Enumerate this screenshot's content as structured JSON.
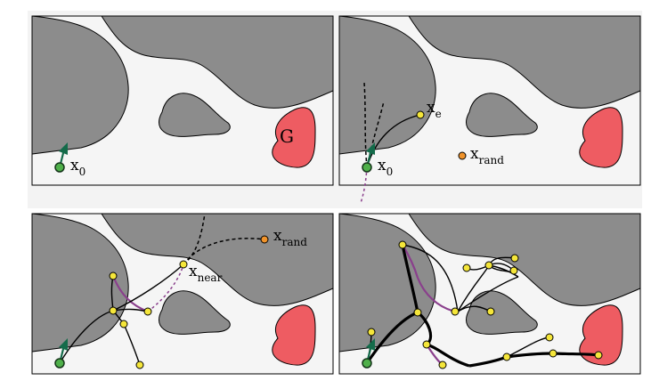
{
  "panels": [
    {
      "id": "panel-1"
    },
    {
      "id": "panel-2"
    },
    {
      "id": "panel-3"
    },
    {
      "id": "panel-4"
    }
  ],
  "labels": {
    "goal": "G",
    "start_main": "x",
    "start_sub": "0",
    "extend_main": "x",
    "extend_sub": "e",
    "rand_main": "x",
    "rand_sub": "rand",
    "near_main": "x",
    "near_sub": "near"
  },
  "colors": {
    "free_space": "#f5f5f5",
    "obstacle": "#8c8c8c",
    "goal": "#ee5c62",
    "tree_node": "#f5e63a",
    "start_node": "#4fb04a",
    "random_sample": "#f0932b",
    "rewire_edge": "#8a3f8c",
    "heading_arrow": "#146b4a"
  },
  "icons": {
    "start": "start-node-icon",
    "heading": "heading-arrow-icon",
    "sample": "random-sample-icon"
  }
}
